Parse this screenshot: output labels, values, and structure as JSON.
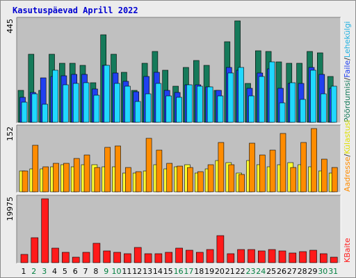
{
  "title": "Kasutuspäevad Aprill 2022",
  "colors": {
    "pooldumisi": "#157a5a",
    "faile": "#2040f0",
    "lehekulgi": "#20d8ff",
    "kulastusi": "#ffff30",
    "aadresse": "#ff8c00",
    "kbaite": "#ff1a1a",
    "weekend_day": "#008040",
    "weekday_day": "#000000",
    "legend_sep": "#303030"
  },
  "legend": {
    "top": [
      "Pöördumisi",
      "Faile",
      "Lehekülgi"
    ],
    "top_colors": [
      "#157a5a",
      "#2040f0",
      "#20b0e0"
    ],
    "mid": [
      "Aadresse",
      "Külastusi"
    ],
    "mid_colors": [
      "#ff8c00",
      "#e0e000"
    ],
    "bottom": [
      "KBaite"
    ],
    "bottom_colors": [
      "#ff1a1a"
    ],
    "separator": "/"
  },
  "chart_data": [
    {
      "type": "bar",
      "title": "Kasutuspäevad Aprill 2022",
      "panel": "top",
      "ymax_label": "445",
      "ylim": [
        0,
        445
      ],
      "categories": [
        "1",
        "2",
        "3",
        "4",
        "5",
        "6",
        "7",
        "8",
        "9",
        "10",
        "11",
        "12",
        "13",
        "14",
        "15",
        "16",
        "17",
        "18",
        "19",
        "20",
        "21",
        "22",
        "23",
        "24",
        "25",
        "26",
        "27",
        "28",
        "29",
        "30",
        "31"
      ],
      "weekend_days": [
        "2",
        "3",
        "9",
        "10",
        "16",
        "17",
        "23",
        "24",
        "30",
        "31"
      ],
      "series": [
        {
          "name": "Pöördumisi",
          "values": [
            140,
            300,
            140,
            300,
            260,
            260,
            250,
            175,
            385,
            300,
            220,
            140,
            260,
            310,
            230,
            160,
            240,
            270,
            250,
            140,
            355,
            445,
            170,
            315,
            310,
            265,
            260,
            260,
            310,
            305,
            200
          ]
        },
        {
          "name": "Faile",
          "values": [
            110,
            130,
            195,
            200,
            205,
            210,
            210,
            145,
            250,
            215,
            180,
            135,
            200,
            220,
            140,
            130,
            165,
            165,
            155,
            140,
            240,
            230,
            150,
            215,
            235,
            150,
            170,
            170,
            240,
            210,
            150
          ]
        },
        {
          "name": "Lehekülgi",
          "values": [
            88,
            125,
            80,
            230,
            165,
            170,
            175,
            120,
            250,
            170,
            160,
            90,
            125,
            170,
            115,
            110,
            165,
            160,
            155,
            115,
            215,
            240,
            115,
            200,
            265,
            85,
            175,
            100,
            230,
            125,
            160
          ]
        }
      ]
    },
    {
      "type": "bar",
      "panel": "middle",
      "ymax_label": "152",
      "ylim": [
        0,
        152
      ],
      "categories": [
        "1",
        "2",
        "3",
        "4",
        "5",
        "6",
        "7",
        "8",
        "9",
        "10",
        "11",
        "12",
        "13",
        "14",
        "15",
        "16",
        "17",
        "18",
        "19",
        "20",
        "21",
        "22",
        "23",
        "24",
        "25",
        "26",
        "27",
        "28",
        "29",
        "30",
        "31"
      ],
      "series": [
        {
          "name": "Külastusi",
          "values": [
            50,
            55,
            55,
            60,
            65,
            60,
            65,
            65,
            60,
            60,
            45,
            45,
            50,
            65,
            55,
            60,
            65,
            45,
            55,
            75,
            70,
            45,
            75,
            65,
            60,
            65,
            70,
            65,
            60,
            50,
            45
          ]
        },
        {
          "name": "Aadresse",
          "values": [
            50,
            112,
            60,
            68,
            68,
            80,
            88,
            58,
            107,
            110,
            58,
            48,
            128,
            100,
            68,
            62,
            58,
            48,
            65,
            118,
            65,
            42,
            117,
            88,
            100,
            140,
            58,
            118,
            152,
            78,
            58
          ]
        }
      ]
    },
    {
      "type": "bar",
      "panel": "bottom",
      "ymax_label": "19975",
      "ylim": [
        0,
        19975
      ],
      "categories": [
        "1",
        "2",
        "3",
        "4",
        "5",
        "6",
        "7",
        "8",
        "9",
        "10",
        "11",
        "12",
        "13",
        "14",
        "15",
        "16",
        "17",
        "18",
        "19",
        "20",
        "21",
        "22",
        "23",
        "24",
        "25",
        "26",
        "27",
        "28",
        "29",
        "30",
        "31"
      ],
      "series": [
        {
          "name": "KBaite",
          "values": [
            2700,
            7900,
            19975,
            4500,
            3200,
            1700,
            3300,
            6000,
            3600,
            3300,
            2900,
            4800,
            2900,
            2800,
            3200,
            4500,
            3800,
            3300,
            4200,
            8400,
            2900,
            4100,
            4100,
            3700,
            4200,
            3700,
            3100,
            3400,
            4000,
            2800,
            1800
          ]
        }
      ]
    }
  ]
}
